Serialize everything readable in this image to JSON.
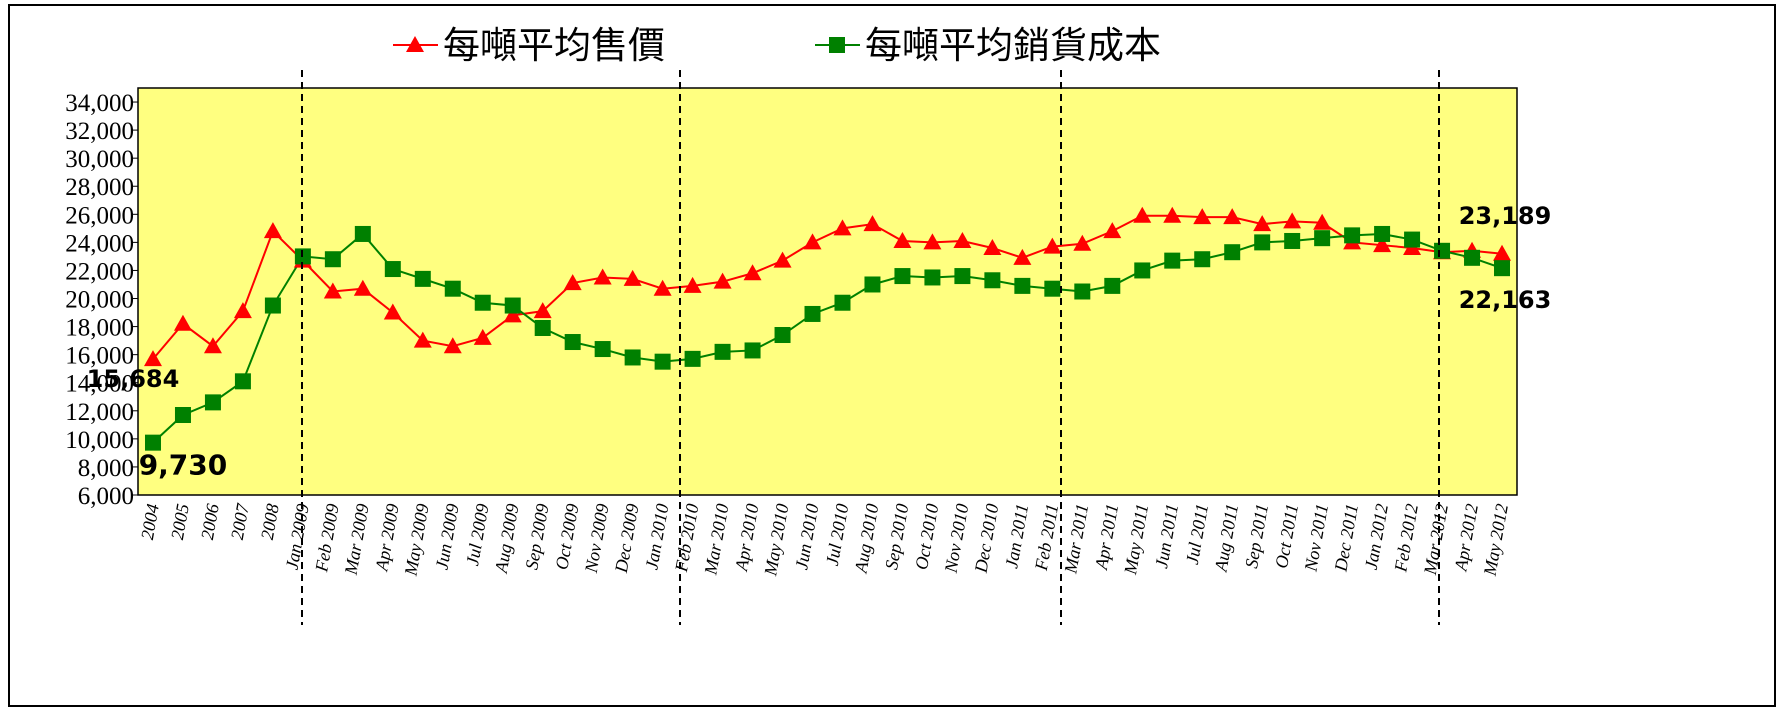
{
  "chart_data": {
    "type": "line",
    "categories": [
      "2004",
      "2005",
      "2006",
      "2007",
      "2008",
      "Jan 2009",
      "Feb 2009",
      "Mar 2009",
      "Apr 2009",
      "May 2009",
      "Jun 2009",
      "Jul 2009",
      "Aug 2009",
      "Sep 2009",
      "Oct 2009",
      "Nov 2009",
      "Dec 2009",
      "Jan 2010",
      "Feb 2010",
      "Mar 2010",
      "Apr 2010",
      "May 2010",
      "Jun 2010",
      "Jul 2010",
      "Aug 2010",
      "Sep 2010",
      "Oct 2010",
      "Nov 2010",
      "Dec 2010",
      "Jan 2011",
      "Feb 2011",
      "Mar 2011",
      "Apr 2011",
      "May 2011",
      "Jun 2011",
      "Jul 2011",
      "Aug 2011",
      "Sep 2011",
      "Oct 2011",
      "Nov 2011",
      "Dec 2011",
      "Jan 2012",
      "Feb 2012",
      "Mar 2012",
      "Apr 2012",
      "May 2012"
    ],
    "series": [
      {
        "name": "每噸平均售價",
        "color": "#ff0000",
        "marker": "triangle",
        "values": [
          15684,
          18200,
          16600,
          19100,
          24800,
          22700,
          20500,
          20700,
          19000,
          17000,
          16600,
          17200,
          18800,
          19100,
          21100,
          21500,
          21400,
          20700,
          20900,
          21200,
          21800,
          22700,
          24000,
          25000,
          25300,
          24100,
          24000,
          24100,
          23600,
          22900,
          23700,
          23900,
          24800,
          25900,
          25900,
          25800,
          25800,
          25300,
          25500,
          25400,
          24000,
          23800,
          23600,
          23300,
          23400,
          23189
        ],
        "value_labels": [
          "15,684",
          null,
          null,
          null,
          null,
          null,
          null,
          null,
          null,
          null,
          null,
          null,
          null,
          null,
          null,
          null,
          null,
          null,
          null,
          null,
          null,
          null,
          null,
          null,
          null,
          null,
          null,
          null,
          null,
          null,
          null,
          null,
          null,
          null,
          null,
          null,
          null,
          null,
          null,
          null,
          null,
          null,
          null,
          null,
          null,
          "23,189"
        ]
      },
      {
        "name": "每噸平均銷貨成本",
        "color": "#008000",
        "marker": "square",
        "values": [
          9730,
          11700,
          12600,
          14100,
          19500,
          23000,
          22800,
          24600,
          22100,
          21400,
          20700,
          19700,
          19500,
          17900,
          16900,
          16400,
          15800,
          15500,
          15700,
          16200,
          16300,
          17400,
          18900,
          19700,
          21000,
          21600,
          21500,
          21600,
          21300,
          20900,
          20700,
          20500,
          20900,
          22000,
          22700,
          22800,
          23300,
          24000,
          24100,
          24300,
          24500,
          24600,
          24200,
          23400,
          22900,
          22163
        ],
        "value_labels": [
          "9,730",
          null,
          null,
          null,
          null,
          null,
          null,
          null,
          null,
          null,
          null,
          null,
          null,
          null,
          null,
          null,
          null,
          null,
          null,
          null,
          null,
          null,
          null,
          null,
          null,
          null,
          null,
          null,
          null,
          null,
          null,
          null,
          null,
          null,
          null,
          null,
          null,
          null,
          null,
          null,
          null,
          null,
          null,
          null,
          null,
          "22,163"
        ]
      }
    ],
    "ylim": [
      6000,
      35000
    ],
    "yticks": [
      {
        "value": 6000,
        "label": "6,000"
      },
      {
        "value": 8000,
        "label": "8,000"
      },
      {
        "value": 10000,
        "label": "10,000"
      },
      {
        "value": 12000,
        "label": "12,000"
      },
      {
        "value": 14000,
        "label": "14,000"
      },
      {
        "value": 16000,
        "label": "16,000"
      },
      {
        "value": 18000,
        "label": "18,000"
      },
      {
        "value": 20000,
        "label": "20,000"
      },
      {
        "value": 22000,
        "label": "22,000"
      },
      {
        "value": 24000,
        "label": "24,000"
      },
      {
        "value": 26000,
        "label": "26,000"
      },
      {
        "value": 28000,
        "label": "28,000"
      },
      {
        "value": 30000,
        "label": "30,000"
      },
      {
        "value": 32000,
        "label": "32,000"
      },
      {
        "value": 34000,
        "label": "34,000"
      }
    ],
    "plot_background": "#ffff80",
    "legend": "top"
  }
}
